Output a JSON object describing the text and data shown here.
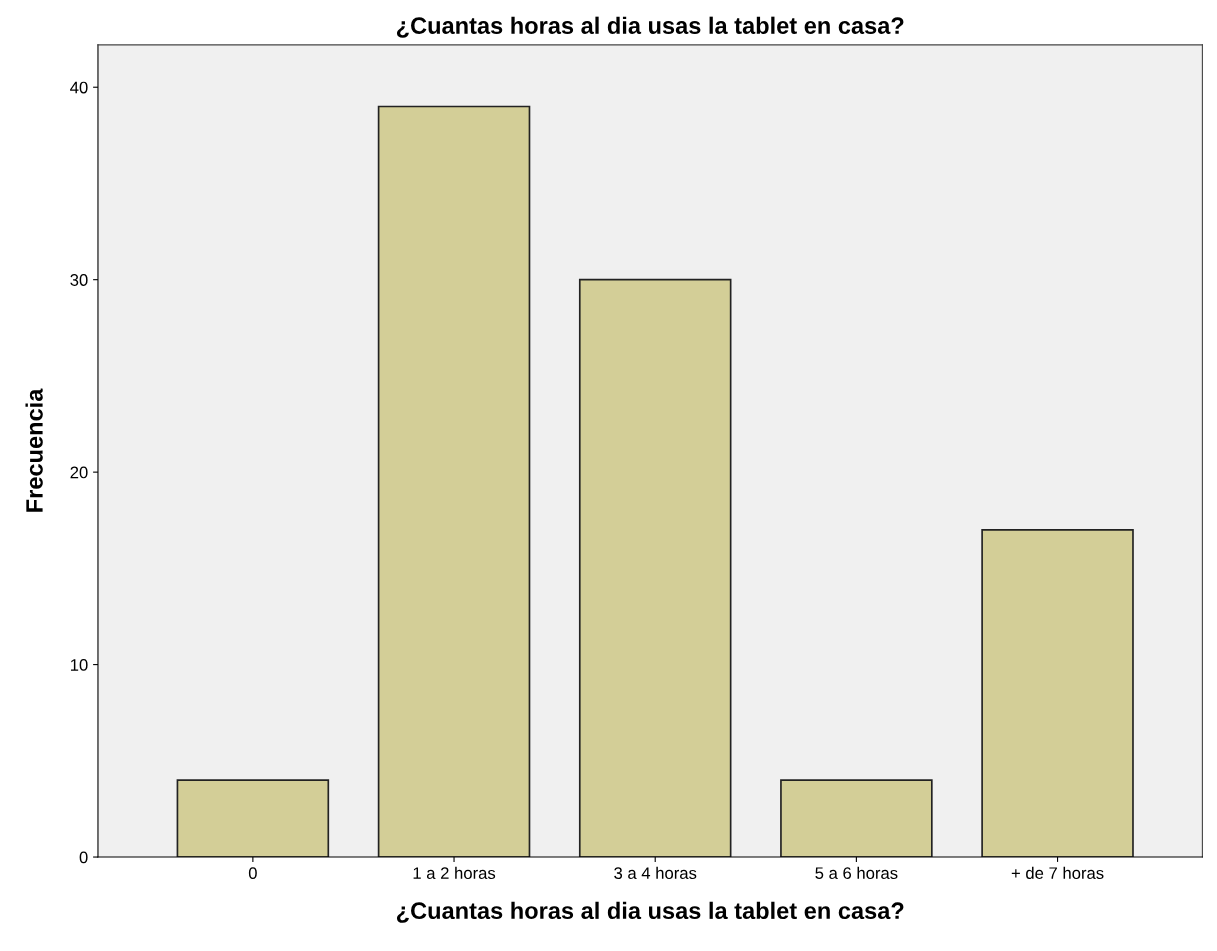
{
  "chart_data": {
    "type": "bar",
    "title": "¿Cuantas horas al dia usas la tablet en casa?",
    "xlabel": "¿Cuantas horas al dia usas la tablet en casa?",
    "ylabel": "Frecuencia",
    "categories": [
      "0",
      "1 a 2 horas",
      "3 a 4 horas",
      "5 a 6 horas",
      "+ de 7 horas"
    ],
    "values": [
      4,
      39,
      30,
      4,
      17
    ],
    "color": "#d3ce97",
    "ylim": [
      0,
      42.2
    ],
    "yticks": [
      0,
      10,
      20,
      30,
      40
    ],
    "grid": false,
    "legend": false
  }
}
